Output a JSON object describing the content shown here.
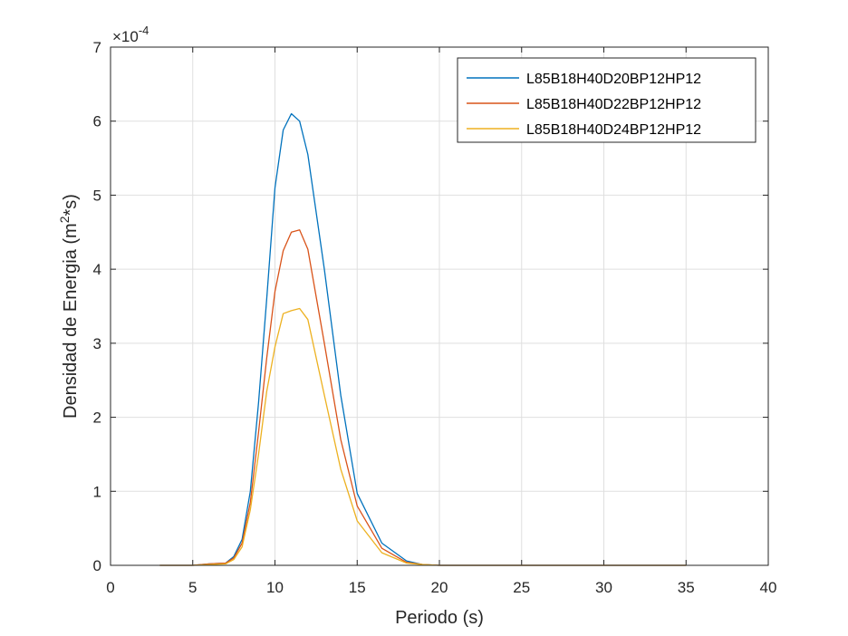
{
  "colors": {
    "series": [
      "#0072BD",
      "#D95319",
      "#EDB120"
    ],
    "grid": "#dfdfdf",
    "axis": "#262626"
  },
  "chart_data": {
    "type": "line",
    "xlabel": "Periodo (s)",
    "ylabel": "Densidad de Energia (m2*s)",
    "ylabel_parts": {
      "base": "Densidad de Energia (m",
      "sup": "2",
      "tail": "*s)"
    },
    "y_exponent_base": "×10",
    "y_exponent_power": "-4",
    "xlim": [
      0,
      40
    ],
    "ylim": [
      0,
      7
    ],
    "xticks": [
      0,
      5,
      10,
      15,
      20,
      25,
      30,
      35,
      40
    ],
    "yticks": [
      0,
      1,
      2,
      3,
      4,
      5,
      6,
      7
    ],
    "grid": true,
    "legend_position": "top-right",
    "x": [
      3,
      4,
      5,
      6,
      7,
      7.5,
      8,
      8.5,
      9,
      9.5,
      10,
      10.5,
      11,
      11.5,
      12,
      13,
      14,
      15,
      16.5,
      18,
      19,
      20,
      22,
      25,
      30,
      35
    ],
    "series": [
      {
        "name": "L85B18H40D20BP12HP12",
        "values": [
          0,
          0,
          0,
          0.02,
          0.03,
          0.12,
          0.35,
          1.0,
          2.2,
          3.6,
          5.1,
          5.88,
          6.1,
          6.0,
          5.55,
          4.0,
          2.3,
          0.97,
          0.3,
          0.06,
          0.01,
          0,
          0,
          0,
          0,
          0
        ]
      },
      {
        "name": "L85B18H40D22BP12HP12",
        "values": [
          0,
          0,
          0,
          0.02,
          0.03,
          0.1,
          0.3,
          0.85,
          1.8,
          2.8,
          3.7,
          4.25,
          4.5,
          4.53,
          4.27,
          3.0,
          1.7,
          0.8,
          0.23,
          0.04,
          0.01,
          0,
          0,
          0,
          0,
          0
        ]
      },
      {
        "name": "L85B18H40D24BP12HP12",
        "values": [
          0,
          0,
          0,
          0.01,
          0.02,
          0.08,
          0.25,
          0.75,
          1.5,
          2.35,
          2.95,
          3.4,
          3.44,
          3.47,
          3.32,
          2.3,
          1.3,
          0.6,
          0.17,
          0.03,
          0.01,
          0,
          0,
          0,
          0,
          0
        ]
      }
    ]
  }
}
